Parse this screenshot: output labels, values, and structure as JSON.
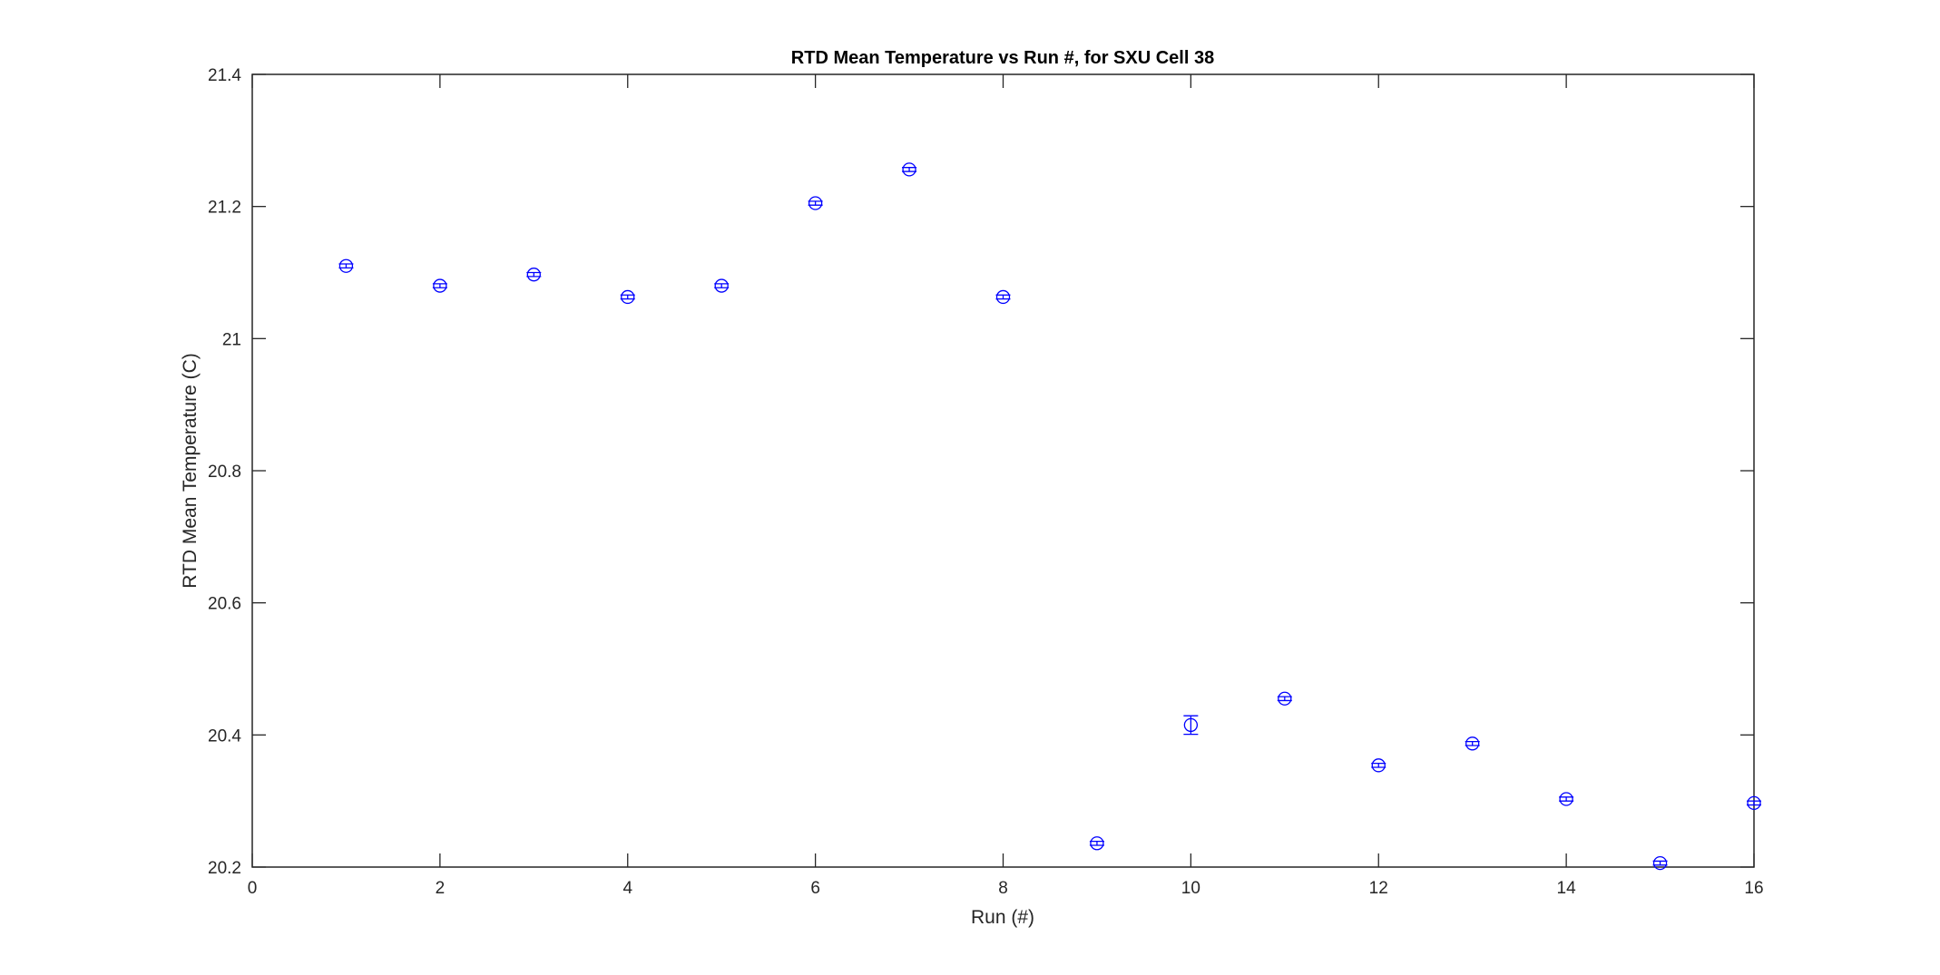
{
  "chart_data": {
    "type": "scatter",
    "title": "RTD Mean Temperature vs Run #, for SXU Cell 38",
    "xlabel": "Run (#)",
    "ylabel": "RTD Mean Temperature (C)",
    "xlim": [
      0,
      16
    ],
    "ylim": [
      20.2,
      21.4
    ],
    "xticks": [
      0,
      2,
      4,
      6,
      8,
      10,
      12,
      14,
      16
    ],
    "yticks": [
      20.2,
      20.4,
      20.6,
      20.8,
      21,
      21.2,
      21.4
    ],
    "xtick_labels": [
      "0",
      "2",
      "4",
      "6",
      "8",
      "10",
      "12",
      "14",
      "16"
    ],
    "ytick_labels": [
      "20.2",
      "20.4",
      "20.6",
      "20.8",
      "21",
      "21.2",
      "21.4"
    ],
    "grid": false,
    "marker": "circle-with-errorbar",
    "color": "#0000ff",
    "x": [
      1,
      2,
      3,
      4,
      5,
      6,
      7,
      8,
      9,
      10,
      11,
      12,
      13,
      14,
      15,
      16
    ],
    "y": [
      21.11,
      21.08,
      21.097,
      21.063,
      21.08,
      21.205,
      21.256,
      21.063,
      20.236,
      20.415,
      20.455,
      20.354,
      20.387,
      20.303,
      20.206,
      20.297
    ],
    "error": [
      0.003,
      0.003,
      0.003,
      0.003,
      0.003,
      0.003,
      0.003,
      0.003,
      0.003,
      0.014,
      0.003,
      0.003,
      0.003,
      0.003,
      0.003,
      0.003
    ]
  }
}
